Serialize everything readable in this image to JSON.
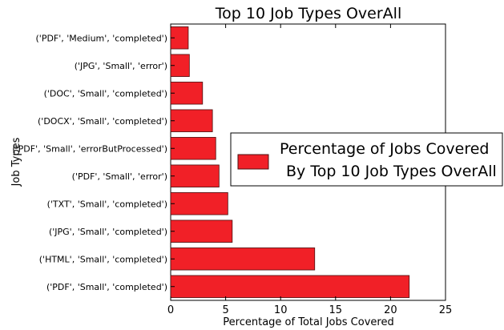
{
  "chart_data": {
    "type": "bar",
    "orientation": "horizontal",
    "title": "Top 10 Job Types OverAll",
    "xlabel": "Percentage of Total Jobs Covered",
    "ylabel": "Job Types",
    "xlim": [
      0,
      25
    ],
    "xticks": [
      "0",
      "5",
      "10",
      "15",
      "20",
      "25"
    ],
    "categories": [
      "('PDF', 'Medium', 'completed')",
      "('JPG', 'Small', 'error')",
      "('DOC', 'Small', 'completed')",
      "('DOCX', 'Small', 'completed')",
      "('PDF', 'Small', 'errorButProcessed')",
      "('PDF', 'Small', 'error')",
      "('TXT', 'Small', 'completed')",
      "('JPG', 'Small', 'completed')",
      "('HTML', 'Small', 'completed')",
      "('PDF', 'Small', 'completed')"
    ],
    "values": [
      1.6,
      1.7,
      2.9,
      3.8,
      4.1,
      4.4,
      5.2,
      5.6,
      13.1,
      21.7
    ],
    "grid": false,
    "legend": {
      "position": "center-right",
      "lines": [
        "Percentage of Jobs Covered",
        "By Top 10 Job Types OverAll"
      ]
    },
    "colors": {
      "bar": "#f12027",
      "edge": "#4a1010"
    }
  }
}
